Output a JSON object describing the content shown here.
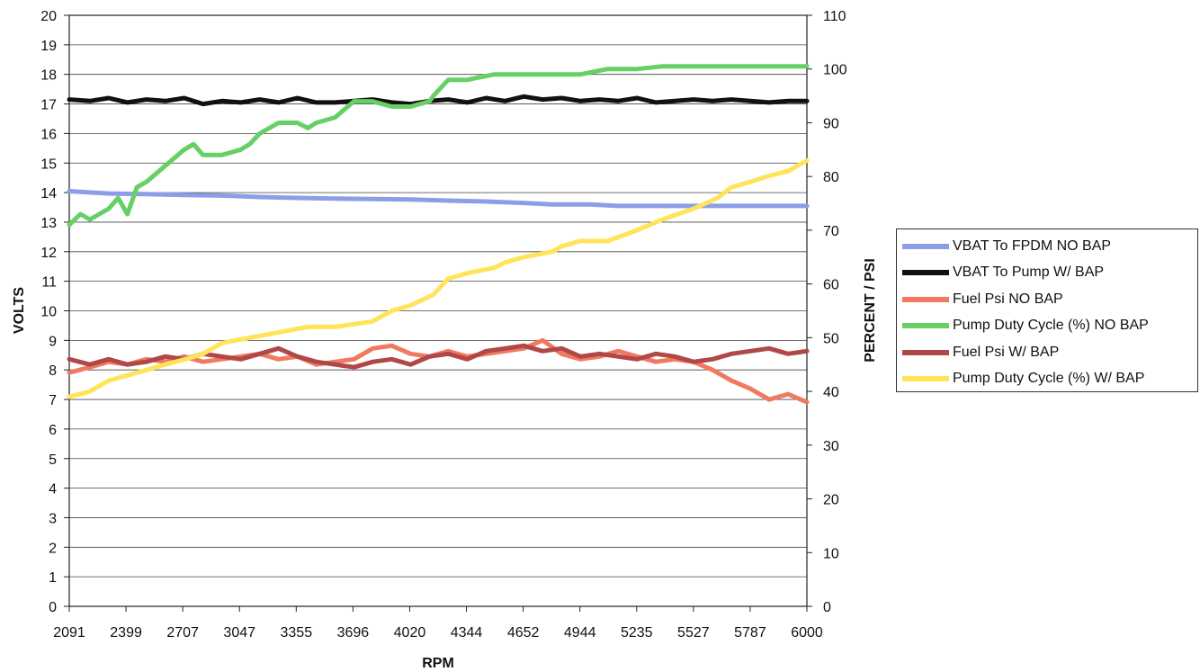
{
  "chart_data": {
    "type": "line",
    "xlabel": "RPM",
    "ylabel_left": "VOLTS",
    "ylabel_right": "PERCENT / PSI",
    "x_tick_labels": [
      "2091",
      "2399",
      "2707",
      "3047",
      "3355",
      "3696",
      "4020",
      "4344",
      "4652",
      "4944",
      "5235",
      "5527",
      "5787",
      "6000"
    ],
    "y_left_ticks": [
      "0",
      "1",
      "2",
      "3",
      "4",
      "5",
      "6",
      "7",
      "8",
      "9",
      "10",
      "11",
      "12",
      "13",
      "14",
      "15",
      "16",
      "17",
      "18",
      "19",
      "20"
    ],
    "y_right_ticks": [
      "0",
      "10",
      "20",
      "30",
      "40",
      "50",
      "60",
      "70",
      "80",
      "90",
      "100",
      "110"
    ],
    "ylim_left": [
      0,
      20
    ],
    "ylim_right": [
      0,
      110
    ],
    "xlim": [
      2091,
      6000
    ],
    "grid": "horizontal",
    "legend_position": "right",
    "series": [
      {
        "name": "VBAT To FPDM NO BAP",
        "axis": "left",
        "color": "#8c9ee8",
        "x": [
          2091,
          2300,
          2500,
          2700,
          2900,
          3100,
          3300,
          3500,
          3700,
          3900,
          4100,
          4300,
          4500,
          4650,
          4850,
          5000,
          5235,
          5500,
          5787,
          6000
        ],
        "y": [
          14.05,
          13.97,
          13.95,
          13.92,
          13.9,
          13.85,
          13.82,
          13.8,
          13.78,
          13.77,
          13.73,
          13.7,
          13.65,
          13.6,
          13.6,
          13.55,
          13.55,
          13.55,
          13.55,
          13.55
        ]
      },
      {
        "name": "VBAT To Pump W/ BAP",
        "axis": "left",
        "color": "#111111",
        "x": [
          2091,
          2200,
          2300,
          2400,
          2500,
          2600,
          2700,
          2800,
          2900,
          3000,
          3100,
          3200,
          3300,
          3400,
          3500,
          3600,
          3700,
          3800,
          3900,
          4000,
          4100,
          4200,
          4300,
          4400,
          4500,
          4600,
          4700,
          4800,
          4900,
          5000,
          5100,
          5200,
          5300,
          5400,
          5500,
          5600,
          5700,
          5800,
          5900,
          6000
        ],
        "y": [
          17.15,
          17.1,
          17.2,
          17.05,
          17.15,
          17.1,
          17.2,
          17.0,
          17.1,
          17.05,
          17.15,
          17.05,
          17.2,
          17.05,
          17.05,
          17.1,
          17.15,
          17.05,
          17.0,
          17.1,
          17.15,
          17.05,
          17.2,
          17.1,
          17.25,
          17.15,
          17.2,
          17.1,
          17.15,
          17.1,
          17.2,
          17.05,
          17.1,
          17.15,
          17.1,
          17.15,
          17.1,
          17.05,
          17.1,
          17.1
        ]
      },
      {
        "name": "Fuel Psi NO BAP",
        "axis": "right",
        "color": "#f07a60",
        "x": [
          2091,
          2200,
          2300,
          2400,
          2500,
          2600,
          2700,
          2800,
          2900,
          3000,
          3100,
          3200,
          3300,
          3400,
          3500,
          3600,
          3700,
          3800,
          3900,
          4000,
          4100,
          4200,
          4300,
          4400,
          4500,
          4600,
          4700,
          4800,
          4900,
          5000,
          5100,
          5200,
          5300,
          5400,
          5500,
          5600,
          5700,
          5800,
          5900,
          6000
        ],
        "y": [
          43.5,
          44.5,
          45.5,
          45.0,
          46.0,
          45.5,
          46.5,
          45.5,
          46.0,
          46.5,
          47.0,
          46.0,
          46.5,
          45.0,
          45.5,
          46.0,
          48.0,
          48.5,
          47.0,
          46.5,
          47.5,
          46.5,
          47.0,
          47.5,
          48.0,
          49.5,
          47.0,
          46.0,
          46.5,
          47.5,
          46.5,
          45.5,
          46.0,
          45.5,
          44.0,
          42.0,
          40.5,
          38.5,
          39.5,
          38.0
        ]
      },
      {
        "name": "Pump Duty Cycle (%) NO BAP",
        "axis": "right",
        "color": "#66d066",
        "x": [
          2091,
          2150,
          2200,
          2300,
          2350,
          2399,
          2450,
          2500,
          2600,
          2700,
          2750,
          2800,
          2900,
          3000,
          3047,
          3100,
          3200,
          3300,
          3355,
          3400,
          3500,
          3600,
          3696,
          3800,
          3900,
          4000,
          4020,
          4100,
          4200,
          4344,
          4500,
          4652,
          4800,
          4944,
          5100,
          5235,
          5400,
          5527,
          5700,
          5787,
          6000
        ],
        "y": [
          71,
          73,
          72,
          74,
          76,
          73,
          78,
          79,
          82,
          85,
          86,
          84,
          84,
          85,
          86,
          88,
          90,
          90,
          89,
          90,
          91,
          94,
          94,
          93,
          93,
          94,
          95,
          98,
          98,
          99,
          99,
          99,
          99,
          100,
          100,
          100.5,
          100.5,
          100.5,
          100.5,
          100.5,
          100.5
        ]
      },
      {
        "name": "Fuel Psi W/ BAP",
        "axis": "right",
        "color": "#b04848",
        "x": [
          2091,
          2200,
          2300,
          2400,
          2500,
          2600,
          2700,
          2800,
          2900,
          3000,
          3100,
          3200,
          3300,
          3400,
          3500,
          3600,
          3700,
          3800,
          3900,
          4000,
          4100,
          4200,
          4300,
          4400,
          4500,
          4600,
          4700,
          4800,
          4900,
          5000,
          5100,
          5200,
          5300,
          5400,
          5500,
          5600,
          5700,
          5800,
          5900,
          6000
        ],
        "y": [
          46.0,
          45.0,
          46.0,
          45.0,
          45.5,
          46.5,
          46.0,
          47.0,
          46.5,
          46.0,
          47.0,
          48.0,
          46.5,
          45.5,
          45.0,
          44.5,
          45.5,
          46.0,
          45.0,
          46.5,
          47.0,
          46.0,
          47.5,
          48.0,
          48.5,
          47.5,
          48.0,
          46.5,
          47.0,
          46.5,
          46.0,
          47.0,
          46.5,
          45.5,
          46.0,
          47.0,
          47.5,
          48.0,
          47.0,
          47.5
        ]
      },
      {
        "name": "Pump Duty Cycle (%) W/ BAP",
        "axis": "right",
        "color": "#ffe45a",
        "x": [
          2091,
          2200,
          2300,
          2399,
          2500,
          2600,
          2707,
          2800,
          2900,
          3047,
          3200,
          3355,
          3500,
          3696,
          3800,
          3900,
          4020,
          4100,
          4200,
          4344,
          4400,
          4500,
          4652,
          4700,
          4800,
          4944,
          5100,
          5235,
          5400,
          5527,
          5600,
          5700,
          5787,
          5900,
          6000
        ],
        "y": [
          39,
          40,
          42,
          43,
          44,
          45,
          46,
          47,
          49,
          50,
          51,
          52,
          52,
          53,
          55,
          56,
          58,
          61,
          62,
          63,
          64,
          65,
          66,
          67,
          68,
          68,
          70,
          72,
          74,
          76,
          78,
          79,
          80,
          81,
          83
        ]
      }
    ]
  }
}
